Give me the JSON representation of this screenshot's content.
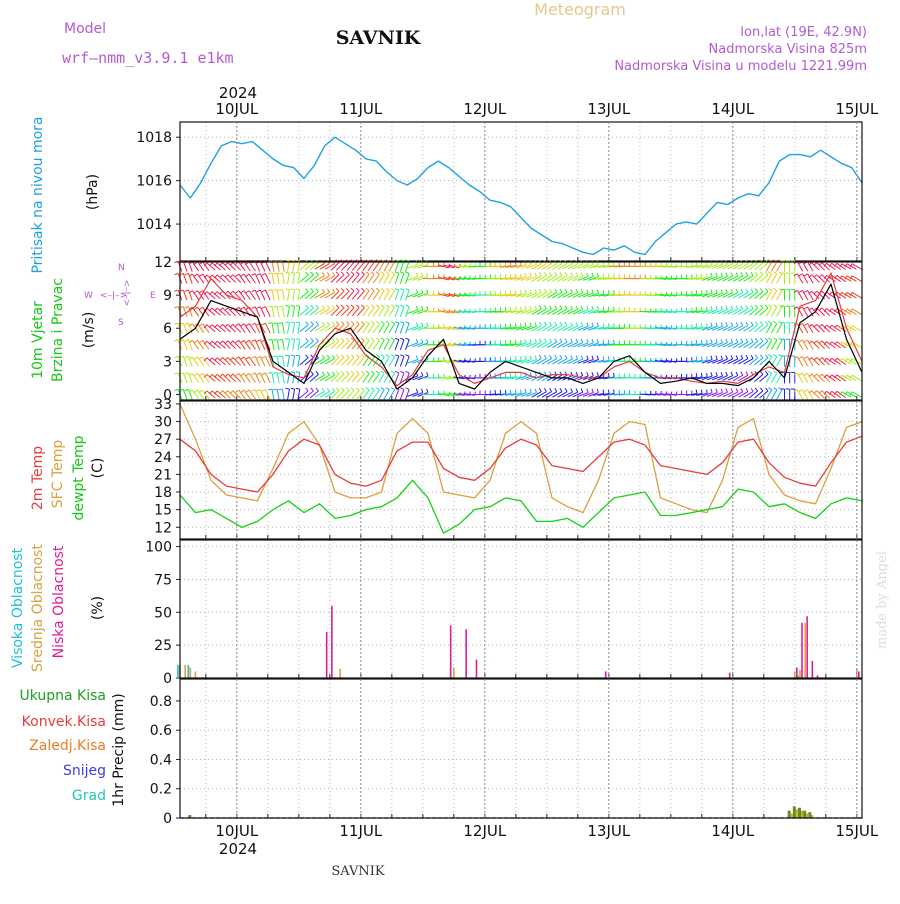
{
  "header": {
    "model_label": "Model",
    "model_name": "wrf–nmm_v3.9.1  e1km",
    "station": "SAVNIK",
    "product": "Meteogram",
    "coords": "lon,lat (19E, 42.9N)",
    "elevation": "Nadmorska Visina 825m",
    "model_elevation": "Nadmorska Visina u modelu 1221.99m"
  },
  "footer": {
    "station": "SAVNIK"
  },
  "watermark": "made by Angel",
  "time_axis": {
    "year": "2024",
    "day_labels": [
      "10JUL",
      "11JUL",
      "12JUL",
      "13JUL",
      "14JUL",
      "15JUL"
    ],
    "start_hour": 13,
    "hours": 132
  },
  "colors": {
    "pressure": "#1ea0e6",
    "temp2m": "#e83c3c",
    "sfc_temp": "#dca03c",
    "dewpt": "#14d214",
    "cloud_high": "#1ebedc",
    "cloud_mid": "#dca03c",
    "cloud_low": "#dc1e96",
    "precip_total": "#1ea01e",
    "precip_conv": "#e83c3c",
    "precip_frozen": "#f07828",
    "snow": "#3c3ce6",
    "graupel": "#1ec8b4",
    "wind_speed": "#000000",
    "wind_gust": "#e83c3c"
  },
  "panels": {
    "pressure": {
      "label": "Pritisak na nivou mora",
      "unit": "(hPa)"
    },
    "wind": {
      "label1": "10m Vjetar",
      "label2": "Brzina i Pravac",
      "unit": "(m/s)",
      "compass": {
        "n": "N",
        "s": "S",
        "e": "E",
        "w": "W",
        "arrow_lr": "<–|–>",
        "arrow_v": "<–|–>"
      }
    },
    "temp": {
      "label1": "2m Temp",
      "label2": "SFC Temp",
      "label3": "dewpt Temp",
      "unit": "(C)"
    },
    "cloud": {
      "label1": "Visoka Oblacnost",
      "label2": "Srednja Oblacnost",
      "label3": "Niska Oblacnost",
      "unit": "(%)"
    },
    "precip": {
      "unit_label": "1hr Precip (mm)",
      "legend": [
        "Ukupna Kisa",
        "Konvek.Kisa",
        "Zaledj.Kisa",
        "Snijeg",
        "Grad"
      ]
    }
  },
  "chart_data": [
    {
      "type": "line",
      "panel": "pressure",
      "ylabel": "Pritisak na nivou mora (hPa)",
      "ylim": [
        1012.3,
        1018.7
      ],
      "yticks": [
        1014,
        1016,
        1018
      ],
      "grid": true,
      "x_hours": [
        0,
        2,
        4,
        6,
        8,
        10,
        12,
        14,
        16,
        18,
        20,
        22,
        24,
        26,
        28,
        30,
        32,
        34,
        36,
        38,
        40,
        42,
        44,
        46,
        48,
        50,
        52,
        54,
        56,
        58,
        60,
        62,
        64,
        66,
        68,
        70,
        72,
        74,
        76,
        78,
        80,
        82,
        84,
        86,
        88,
        90,
        92,
        94,
        96,
        98,
        100,
        102,
        104,
        106,
        108,
        110,
        112,
        114,
        116,
        118,
        120,
        122,
        124,
        126,
        128,
        130,
        132
      ],
      "series": [
        {
          "values": [
            1015.8,
            1015.2,
            1015.9,
            1016.8,
            1017.6,
            1017.8,
            1017.7,
            1017.8,
            1017.4,
            1017.0,
            1016.7,
            1016.6,
            1016.1,
            1016.7,
            1017.6,
            1018.0,
            1017.7,
            1017.4,
            1017.0,
            1016.9,
            1016.4,
            1016.0,
            1015.8,
            1016.1,
            1016.6,
            1016.9,
            1016.6,
            1016.2,
            1015.8,
            1015.5,
            1015.1,
            1015.0,
            1014.8,
            1014.3,
            1013.8,
            1013.5,
            1013.2,
            1013.1,
            1012.9,
            1012.7,
            1012.6,
            1012.9,
            1012.8,
            1013.0,
            1012.7,
            1012.6,
            1013.2,
            1013.6,
            1014.0,
            1014.1,
            1014.0,
            1014.5,
            1015.0,
            1014.9,
            1015.2,
            1015.4,
            1015.3,
            1015.9,
            1016.9,
            1017.2,
            1017.2,
            1017.1,
            1017.4,
            1017.1,
            1016.8,
            1016.6,
            1015.9
          ]
        }
      ]
    },
    {
      "type": "line",
      "panel": "wind",
      "ylabel": "10m Vjetar Brzina i Pravac (m/s)",
      "ylim": [
        -0.5,
        12
      ],
      "yticks": [
        0,
        3,
        6,
        9,
        12
      ],
      "grid": true,
      "x_hours": [
        0,
        3,
        6,
        9,
        12,
        15,
        18,
        21,
        24,
        27,
        30,
        33,
        36,
        39,
        42,
        45,
        48,
        51,
        54,
        57,
        60,
        63,
        66,
        69,
        72,
        75,
        78,
        81,
        84,
        87,
        90,
        93,
        96,
        99,
        102,
        105,
        108,
        111,
        114,
        117,
        120,
        123,
        126,
        129,
        132
      ],
      "series": [
        {
          "name": "speed",
          "values": [
            5.0,
            6.0,
            8.5,
            8.0,
            7.5,
            7.0,
            3.0,
            2.0,
            1.0,
            4.0,
            5.5,
            6.0,
            4.0,
            3.0,
            0.5,
            1.5,
            3.5,
            5.0,
            1.0,
            0.5,
            2.0,
            3.0,
            2.5,
            2.0,
            1.5,
            1.5,
            1.0,
            1.5,
            3.0,
            3.5,
            2.0,
            1.0,
            1.2,
            1.5,
            1.0,
            1.0,
            0.8,
            1.5,
            3.0,
            1.5,
            6.5,
            7.5,
            10.0,
            5.0,
            2.0
          ]
        },
        {
          "name": "gust",
          "values": [
            7.0,
            8.0,
            10.5,
            9.0,
            8.5,
            7.0,
            2.5,
            1.8,
            1.5,
            4.5,
            6.0,
            5.5,
            3.5,
            2.5,
            0.8,
            1.8,
            4.0,
            4.5,
            1.8,
            1.0,
            1.5,
            2.0,
            2.0,
            1.5,
            1.8,
            1.8,
            1.5,
            1.5,
            2.5,
            3.0,
            2.0,
            1.5,
            1.5,
            1.2,
            1.0,
            1.2,
            1.0,
            1.8,
            2.5,
            2.0,
            8.0,
            8.5,
            11.0,
            6.0,
            3.0
          ]
        }
      ],
      "barb_directions_deg": [
        200,
        215,
        230,
        225,
        215,
        205,
        190,
        170,
        130,
        120,
        135,
        140,
        145,
        150,
        160,
        110,
        90,
        75,
        80,
        90,
        95,
        100,
        110,
        120,
        120,
        115,
        110,
        100,
        95,
        90,
        85,
        80,
        90,
        100,
        110,
        115,
        120,
        130,
        150,
        180,
        210,
        225,
        235,
        240,
        230
      ]
    },
    {
      "type": "line",
      "panel": "temperature",
      "ylabel": "(C)",
      "ylim": [
        10,
        33.5
      ],
      "yticks": [
        12,
        15,
        18,
        21,
        24,
        27,
        30,
        33
      ],
      "grid": true,
      "x_hours": [
        0,
        3,
        6,
        9,
        12,
        15,
        18,
        21,
        24,
        27,
        30,
        33,
        36,
        39,
        42,
        45,
        48,
        51,
        54,
        57,
        60,
        63,
        66,
        69,
        72,
        75,
        78,
        81,
        84,
        87,
        90,
        93,
        96,
        99,
        102,
        105,
        108,
        111,
        114,
        117,
        120,
        123,
        126,
        129,
        132
      ],
      "series": [
        {
          "name": "2m Temp",
          "values": [
            27.0,
            25.0,
            21.0,
            19.0,
            18.5,
            18.0,
            21.0,
            25.0,
            27.0,
            26.0,
            21.0,
            19.5,
            19.0,
            20.0,
            25.0,
            26.5,
            26.5,
            22.0,
            20.5,
            20.0,
            22.0,
            25.5,
            27.0,
            26.0,
            22.5,
            22.0,
            21.5,
            24.0,
            26.5,
            27.0,
            26.0,
            22.5,
            22.0,
            21.5,
            21.0,
            23.0,
            26.5,
            27.0,
            23.0,
            20.5,
            19.5,
            19.0,
            23.0,
            26.5,
            27.5
          ]
        },
        {
          "name": "SFC Temp",
          "values": [
            33.0,
            27.0,
            20.0,
            17.5,
            17.0,
            16.5,
            22.0,
            28.0,
            30.0,
            26.0,
            18.0,
            17.0,
            17.0,
            18.0,
            28.0,
            30.5,
            28.0,
            18.0,
            17.5,
            17.0,
            20.0,
            28.0,
            30.0,
            28.0,
            17.0,
            15.5,
            14.5,
            20.0,
            28.0,
            30.0,
            29.5,
            17.0,
            16.0,
            15.0,
            14.5,
            20.0,
            29.0,
            30.5,
            21.0,
            17.5,
            16.5,
            16.0,
            22.0,
            29.0,
            30.0
          ]
        },
        {
          "name": "dewpt Temp",
          "values": [
            17.5,
            14.5,
            15.0,
            13.5,
            12.0,
            13.0,
            15.0,
            16.5,
            14.5,
            16.0,
            13.5,
            14.0,
            15.0,
            15.5,
            17.0,
            20.0,
            17.0,
            11.0,
            12.5,
            15.0,
            15.5,
            17.0,
            16.5,
            13.0,
            13.0,
            13.5,
            12.0,
            14.5,
            17.0,
            17.5,
            18.0,
            14.0,
            14.0,
            14.5,
            15.0,
            15.5,
            18.5,
            18.0,
            15.5,
            16.0,
            14.5,
            13.5,
            16.0,
            17.0,
            16.5
          ]
        }
      ]
    },
    {
      "type": "bar",
      "panel": "cloud",
      "ylabel": "(%)",
      "ylim": [
        0,
        105
      ],
      "yticks": [
        0,
        25,
        50,
        75,
        100
      ],
      "grid": true,
      "x_hours": [
        0,
        1,
        2,
        3,
        28,
        29,
        30,
        31,
        52,
        53,
        55,
        56,
        57,
        82,
        106,
        119,
        120,
        121,
        122,
        123,
        131
      ],
      "series": [
        {
          "name": "Visoka Oblacnost",
          "values": [
            10,
            0,
            10,
            0,
            0,
            0,
            0,
            0,
            0,
            0,
            0,
            0,
            0,
            0,
            0,
            0,
            2,
            0,
            0,
            0,
            0
          ]
        },
        {
          "name": "Srednja Oblacnost",
          "values": [
            10,
            10,
            8,
            5,
            0,
            0,
            0,
            7,
            0,
            8,
            0,
            0,
            0,
            0,
            0,
            5,
            6,
            42,
            0,
            0,
            7
          ]
        },
        {
          "name": "Niska Oblacnost",
          "values": [
            0,
            0,
            0,
            0,
            35,
            55,
            0,
            0,
            40,
            0,
            37,
            0,
            14,
            5,
            4,
            8,
            42,
            47,
            13,
            2,
            5
          ]
        }
      ]
    },
    {
      "type": "bar",
      "panel": "precip",
      "ylabel": "1hr Precip (mm)",
      "ylim": [
        0,
        0.95
      ],
      "yticks": [
        0,
        0.2,
        0.4,
        0.6,
        0.8
      ],
      "grid": true,
      "x_hours": [
        2,
        118,
        119,
        120,
        121,
        122
      ],
      "series": [
        {
          "name": "Ukupna Kisa",
          "values": [
            0.02,
            0.05,
            0.08,
            0.07,
            0.05,
            0.04
          ]
        },
        {
          "name": "Konvek.Kisa",
          "values": [
            0.0,
            0.03,
            0.06,
            0.05,
            0.03,
            0.02
          ]
        }
      ]
    }
  ]
}
